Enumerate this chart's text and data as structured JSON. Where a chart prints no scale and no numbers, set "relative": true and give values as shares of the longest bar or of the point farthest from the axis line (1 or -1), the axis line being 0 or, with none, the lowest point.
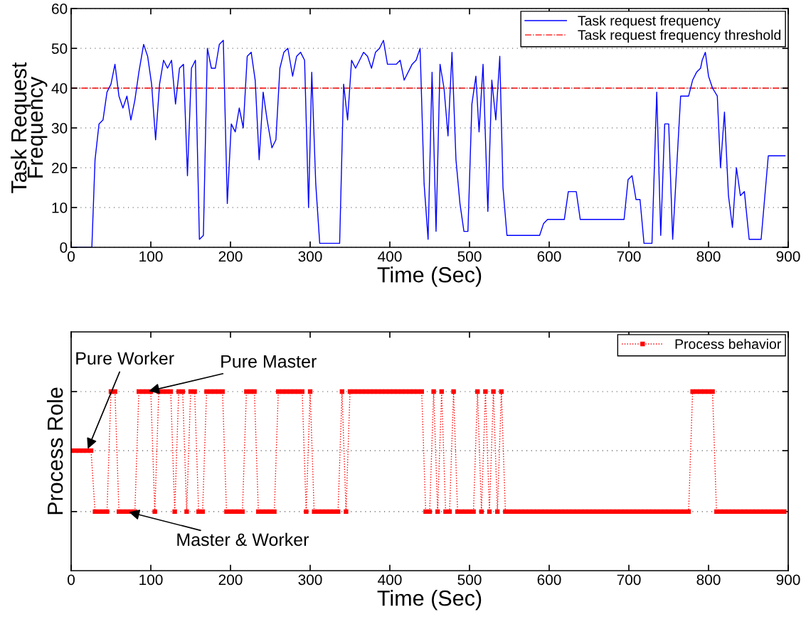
{
  "chart_data": [
    {
      "type": "line",
      "xlabel": "Time (Sec)",
      "ylabel": "Task Request\nFrequency",
      "series": [
        {
          "name": "Task request frequency",
          "color": "#0000ff",
          "x": [
            0,
            26,
            30,
            35,
            40,
            45,
            50,
            55,
            60,
            65,
            70,
            75,
            80,
            85,
            91,
            96,
            101,
            106,
            111,
            116,
            121,
            126,
            131,
            136,
            141,
            146,
            151,
            156,
            161,
            166,
            171,
            176,
            181,
            186,
            191,
            196,
            201,
            206,
            211,
            216,
            221,
            226,
            231,
            236,
            241,
            246,
            252,
            257,
            262,
            267,
            272,
            278,
            283,
            288,
            293,
            298,
            302,
            307,
            312,
            337,
            342,
            347,
            352,
            357,
            367,
            372,
            377,
            382,
            387,
            392,
            397,
            408,
            413,
            418,
            428,
            433,
            438,
            443,
            448,
            453,
            458,
            463,
            468,
            473,
            478,
            483,
            488,
            493,
            498,
            503,
            508,
            512,
            517,
            523,
            528,
            533,
            538,
            542,
            547,
            588,
            593,
            598,
            619,
            624,
            634,
            639,
            694,
            699,
            704,
            709,
            714,
            719,
            729,
            735,
            740,
            745,
            750,
            755,
            765,
            775,
            780,
            785,
            790,
            792,
            796,
            800,
            805,
            811,
            815,
            820,
            825,
            830,
            835,
            840,
            845,
            851,
            866,
            875,
            896
          ],
          "values": [
            0,
            0,
            22,
            31,
            32,
            39,
            41,
            46,
            38,
            35,
            38,
            32,
            37,
            44,
            51,
            48,
            41,
            27,
            41,
            47,
            45,
            47,
            36,
            45,
            46,
            18,
            45,
            47,
            2,
            3,
            50,
            45,
            45,
            51,
            52,
            11,
            31,
            29,
            35,
            30,
            48,
            49,
            42,
            22,
            39,
            32,
            25,
            27,
            45,
            49,
            50,
            43,
            48,
            49,
            47,
            10,
            44,
            16,
            1,
            1,
            41,
            32,
            47,
            45,
            49,
            48,
            45,
            49,
            50,
            52,
            46,
            46,
            47,
            42,
            46,
            47,
            50,
            16,
            2,
            44,
            4,
            46,
            40,
            28,
            49,
            22,
            11,
            4,
            4,
            36,
            43,
            29,
            46,
            9,
            42,
            32,
            48,
            15,
            3,
            3,
            6,
            7,
            7,
            14,
            14,
            7,
            7,
            17,
            18,
            12,
            12,
            1,
            1,
            39,
            3,
            31,
            31,
            2,
            38,
            38,
            42,
            44,
            45,
            47,
            49,
            43,
            40,
            38,
            20,
            34,
            13,
            5,
            20,
            13,
            14,
            2,
            2,
            23,
            23
          ]
        }
      ],
      "ref_lines": [
        {
          "axis": "y",
          "value": 40,
          "label": "Task request frequency threshold",
          "color": "#ff0000",
          "line_style": "dashdot"
        }
      ],
      "xlim": [
        0,
        900
      ],
      "xticks": [
        0,
        100,
        200,
        300,
        400,
        500,
        600,
        700,
        800,
        900
      ],
      "ylim": [
        0,
        60
      ],
      "yticks": [
        0,
        10,
        20,
        30,
        40,
        50,
        60
      ],
      "grid": "y",
      "legend": "top right",
      "line_style": "solid",
      "marker": "none"
    },
    {
      "type": "line",
      "xlabel": "Time (Sec)",
      "ylabel": "Process Role",
      "series": [
        {
          "name": "Process behavior",
          "color": "#ff0000",
          "x": [
            0,
            5,
            10,
            15,
            20,
            25,
            30,
            35,
            40,
            45,
            50,
            55,
            60,
            65,
            70,
            75,
            80,
            85,
            90,
            95,
            100,
            105,
            110,
            115,
            120,
            125,
            130,
            135,
            140,
            145,
            150,
            155,
            160,
            165,
            170,
            175,
            180,
            185,
            190,
            195,
            200,
            205,
            210,
            215,
            220,
            225,
            230,
            235,
            240,
            245,
            250,
            255,
            260,
            265,
            270,
            275,
            280,
            285,
            290,
            295,
            300,
            305,
            310,
            315,
            320,
            325,
            330,
            335,
            340,
            345,
            350,
            355,
            360,
            365,
            370,
            375,
            380,
            385,
            390,
            395,
            400,
            405,
            410,
            415,
            420,
            425,
            430,
            435,
            440,
            445,
            450,
            455,
            460,
            465,
            470,
            475,
            480,
            485,
            490,
            495,
            500,
            505,
            510,
            515,
            520,
            525,
            530,
            535,
            540,
            545,
            550,
            555,
            560,
            565,
            570,
            575,
            580,
            585,
            590,
            595,
            600,
            605,
            610,
            615,
            620,
            625,
            630,
            635,
            640,
            645,
            650,
            655,
            660,
            665,
            670,
            675,
            680,
            685,
            690,
            695,
            700,
            705,
            710,
            715,
            720,
            725,
            730,
            735,
            740,
            745,
            750,
            755,
            760,
            765,
            770,
            775,
            780,
            785,
            790,
            795,
            800,
            805,
            810,
            815,
            820,
            825,
            830,
            835,
            840,
            845,
            850,
            855,
            860,
            865,
            870,
            875,
            880,
            885,
            890,
            895
          ],
          "values": [
            0.67,
            0.67,
            0.67,
            0.67,
            0.67,
            0.67,
            0.33,
            0.33,
            0.33,
            0.33,
            1,
            1,
            0.33,
            0.33,
            0.33,
            0.33,
            0.33,
            1,
            1,
            1,
            1,
            0.33,
            1,
            1,
            1,
            1,
            0.33,
            1,
            1,
            0.33,
            1,
            1,
            0.33,
            0.33,
            1,
            1,
            1,
            1,
            1,
            0.33,
            0.33,
            0.33,
            0.33,
            0.33,
            1,
            1,
            1,
            0.33,
            0.33,
            0.33,
            0.33,
            0.33,
            1,
            1,
            1,
            1,
            1,
            1,
            1,
            0.33,
            1,
            0.33,
            0.33,
            0.33,
            0.33,
            0.33,
            0.33,
            0.33,
            1,
            0.33,
            1,
            1,
            1,
            1,
            1,
            1,
            1,
            1,
            1,
            1,
            1,
            1,
            1,
            1,
            1,
            1,
            1,
            1,
            1,
            0.33,
            0.33,
            1,
            0.33,
            1,
            0.33,
            0.33,
            1,
            0.33,
            0.33,
            0.33,
            0.33,
            0.33,
            1,
            0.33,
            1,
            0.33,
            1,
            0.33,
            1,
            0.33,
            0.33,
            0.33,
            0.33,
            0.33,
            0.33,
            0.33,
            0.33,
            0.33,
            0.33,
            0.33,
            0.33,
            0.33,
            0.33,
            0.33,
            0.33,
            0.33,
            0.33,
            0.33,
            0.33,
            0.33,
            0.33,
            0.33,
            0.33,
            0.33,
            0.33,
            0.33,
            0.33,
            0.33,
            0.33,
            0.33,
            0.33,
            0.33,
            0.33,
            0.33,
            0.33,
            0.33,
            0.33,
            0.33,
            0.33,
            0.33,
            0.33,
            0.33,
            0.33,
            0.33,
            0.33,
            0.33,
            1,
            1,
            1,
            1,
            1,
            1,
            0.33,
            0.33,
            0.33,
            0.33,
            0.33,
            0.33,
            0.33,
            0.33,
            0.33,
            0.33,
            0.33,
            0.33,
            0.33,
            0.33,
            0.33,
            0.33,
            0.33,
            0.33
          ]
        }
      ],
      "ref_lines": [
        {
          "axis": "y",
          "value": 0.33,
          "color": "#444444",
          "line_style": "dotted"
        },
        {
          "axis": "y",
          "value": 0.67,
          "color": "#444444",
          "line_style": "dotted"
        },
        {
          "axis": "y",
          "value": 1,
          "color": "#444444",
          "line_style": "dotted"
        }
      ],
      "annotations": [
        {
          "text": "Pure Worker",
          "x": 20,
          "y": 0.67
        },
        {
          "text": "Pure Master",
          "x": 95,
          "y": 1
        },
        {
          "text": "Master & Worker",
          "x": 70,
          "y": 0.33
        }
      ],
      "xlim": [
        0,
        900
      ],
      "xticks": [
        0,
        100,
        200,
        300,
        400,
        500,
        600,
        700,
        800,
        900
      ],
      "relative": true,
      "legend": "top right",
      "line_style": "dotted",
      "marker": "square"
    }
  ]
}
